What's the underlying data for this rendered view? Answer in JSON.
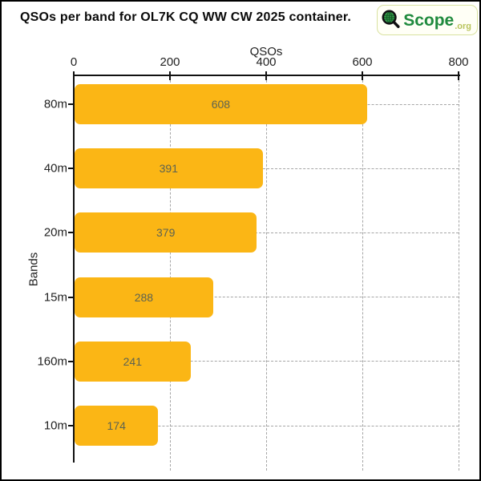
{
  "header": {
    "title": "QSOs per band for OL7K CQ WW CW 2025 container.",
    "logo": {
      "icon": "magnifier-globe-icon",
      "text": "Scope",
      "suffix": ".org",
      "text_color": "#1f8a3d",
      "suffix_color": "#b9c45c"
    }
  },
  "chart_data": {
    "type": "bar",
    "orientation": "horizontal",
    "title": "QSOs per band for OL7K CQ WW CW 2025 container.",
    "xlabel": "QSOs",
    "ylabel": "Bands",
    "categories": [
      "80m",
      "40m",
      "20m",
      "15m",
      "160m",
      "10m"
    ],
    "values": [
      608,
      391,
      379,
      288,
      241,
      174
    ],
    "xlim": [
      0,
      800
    ],
    "xticks": [
      0,
      200,
      400,
      600,
      800
    ],
    "legend": "none",
    "grid": "dashed",
    "bar_color": "#FBB615",
    "value_label_color": "#5C6352",
    "axis_color": "#111111",
    "grid_color": "#A5A5A5"
  }
}
